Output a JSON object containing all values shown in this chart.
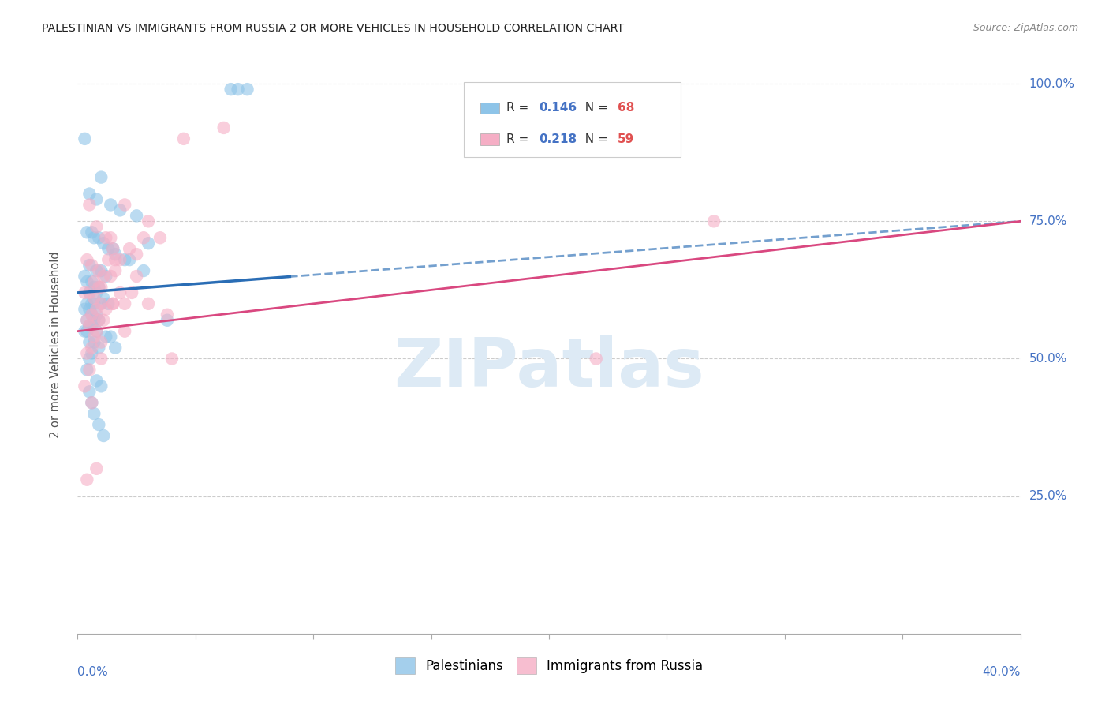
{
  "title": "PALESTINIAN VS IMMIGRANTS FROM RUSSIA 2 OR MORE VEHICLES IN HOUSEHOLD CORRELATION CHART",
  "source": "Source: ZipAtlas.com",
  "ylabel": "2 or more Vehicles in Household",
  "x_left_label": "0.0%",
  "x_right_label": "40.0%",
  "ytick_positions": [
    25,
    50,
    75,
    100
  ],
  "ytick_labels": [
    "25.0%",
    "50.0%",
    "75.0%",
    "100.0%"
  ],
  "blue_R": "0.146",
  "blue_N": "68",
  "pink_R": "0.218",
  "pink_N": "59",
  "blue_dot_color": "#8ec4e8",
  "pink_dot_color": "#f5aec5",
  "blue_line_color": "#2a6db5",
  "pink_line_color": "#d94880",
  "blue_label": "Palestinians",
  "pink_label": "Immigrants from Russia",
  "blue_x": [
    0.3,
    1.0,
    0.5,
    0.8,
    1.4,
    1.8,
    2.5,
    3.0,
    6.5,
    6.8,
    7.2,
    0.4,
    0.6,
    0.7,
    0.9,
    1.1,
    1.3,
    1.6,
    2.0,
    2.2,
    0.5,
    0.8,
    1.0,
    1.2,
    0.3,
    0.4,
    0.6,
    0.7,
    0.9,
    1.5,
    0.5,
    0.8,
    1.1,
    0.6,
    0.4,
    0.7,
    1.0,
    1.3,
    0.3,
    0.5,
    0.6,
    0.8,
    0.4,
    0.7,
    0.9,
    0.5,
    0.6,
    0.3,
    0.4,
    0.8,
    1.2,
    1.4,
    0.5,
    0.7,
    1.6,
    2.8,
    0.9,
    3.8,
    0.6,
    0.5,
    0.4,
    0.8,
    1.0,
    0.5,
    0.6,
    0.7,
    0.9,
    1.1
  ],
  "blue_y": [
    90,
    83,
    80,
    79,
    78,
    77,
    76,
    71,
    99,
    99,
    99,
    73,
    73,
    72,
    72,
    71,
    70,
    69,
    68,
    68,
    67,
    66,
    66,
    65,
    65,
    64,
    64,
    63,
    63,
    70,
    62,
    62,
    61,
    60,
    60,
    60,
    60,
    60,
    59,
    59,
    58,
    58,
    57,
    57,
    57,
    56,
    56,
    55,
    55,
    55,
    54,
    54,
    53,
    53,
    52,
    66,
    52,
    57,
    51,
    50,
    48,
    46,
    45,
    44,
    42,
    40,
    38,
    36
  ],
  "pink_x": [
    0.5,
    0.8,
    1.2,
    1.5,
    2.0,
    2.5,
    3.0,
    4.5,
    6.2,
    0.4,
    0.6,
    0.9,
    1.1,
    1.4,
    1.8,
    2.2,
    0.7,
    1.0,
    1.6,
    2.8,
    0.3,
    0.5,
    0.7,
    1.0,
    1.3,
    1.5,
    0.8,
    1.2,
    0.6,
    0.4,
    0.9,
    1.1,
    2.0,
    3.5,
    0.5,
    0.8,
    1.5,
    2.5,
    0.7,
    1.0,
    3.0,
    0.6,
    1.8,
    2.3,
    0.4,
    1.0,
    0.5,
    1.4,
    2.0,
    0.3,
    4.0,
    0.6,
    3.8,
    1.6,
    0.9,
    22.0,
    27.0,
    0.8,
    0.4
  ],
  "pink_y": [
    78,
    74,
    72,
    70,
    78,
    69,
    75,
    90,
    92,
    68,
    67,
    66,
    65,
    72,
    68,
    70,
    64,
    63,
    66,
    72,
    62,
    62,
    61,
    60,
    68,
    60,
    59,
    59,
    58,
    57,
    57,
    57,
    60,
    72,
    56,
    55,
    60,
    65,
    54,
    53,
    60,
    52,
    62,
    62,
    51,
    50,
    48,
    65,
    55,
    45,
    50,
    42,
    58,
    68,
    63,
    50,
    75,
    30,
    28
  ],
  "xlim": [
    0,
    40
  ],
  "ylim": [
    0,
    105
  ],
  "bg_color": "#ffffff",
  "grid_color": "#cccccc",
  "watermark_color": "#ddeaf5",
  "tick_label_color": "#4472c4",
  "legend_R_color": "#4472c4",
  "legend_N_color": "#e05050"
}
